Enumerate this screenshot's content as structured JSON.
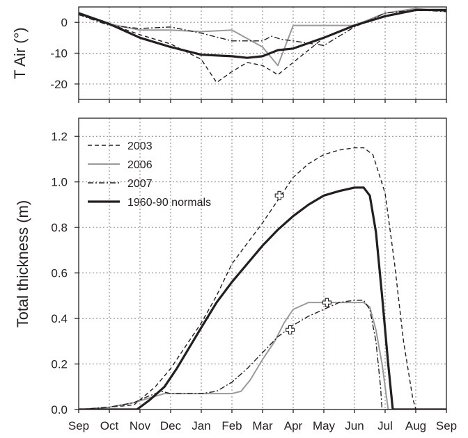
{
  "chart_data": [
    {
      "id": "air_temperature",
      "type": "line",
      "title": "",
      "xlabel": "",
      "ylabel": "T Air (°)",
      "x_categories": [
        "Sep",
        "Oct",
        "Nov",
        "Dec",
        "Jan",
        "Feb",
        "Mar",
        "Apr",
        "May",
        "Jun",
        "Jul",
        "Aug",
        "Sep"
      ],
      "xlim": [
        0,
        12
      ],
      "ylim": [
        -25,
        5
      ],
      "yticks": [
        0,
        -10,
        -20
      ],
      "ytick_labels": [
        "0",
        "-10",
        "-20"
      ],
      "grid": true,
      "series": [
        {
          "name": "2003",
          "style": "dashed",
          "color": "#231f20",
          "points": [
            [
              0,
              2.5
            ],
            [
              1,
              -0.5
            ],
            [
              2,
              -4
            ],
            [
              3,
              -7
            ],
            [
              4,
              -12
            ],
            [
              4.5,
              -19.5
            ],
            [
              5,
              -16
            ],
            [
              5.5,
              -13
            ],
            [
              6,
              -14
            ],
            [
              6.5,
              -17
            ],
            [
              7,
              -13
            ],
            [
              7.5,
              -9
            ],
            [
              8,
              -5
            ],
            [
              9,
              -1
            ],
            [
              10,
              3
            ],
            [
              11,
              4.5
            ],
            [
              12,
              3.5
            ]
          ]
        },
        {
          "name": "2006",
          "style": "solid-gray",
          "color": "#9a9a9a",
          "points": [
            [
              0,
              3
            ],
            [
              1,
              -0.5
            ],
            [
              2,
              -2.5
            ],
            [
              3,
              -2.5
            ],
            [
              4,
              -3
            ],
            [
              5,
              -2.5
            ],
            [
              6,
              -8
            ],
            [
              6.5,
              -14
            ],
            [
              7,
              -1
            ],
            [
              8,
              -1
            ],
            [
              9,
              -1
            ],
            [
              10,
              3
            ],
            [
              11,
              4.5
            ],
            [
              12,
              3.5
            ]
          ]
        },
        {
          "name": "2007",
          "style": "dash-dot",
          "color": "#231f20",
          "points": [
            [
              0,
              2.5
            ],
            [
              1,
              -1
            ],
            [
              2,
              -2
            ],
            [
              3,
              -1.5
            ],
            [
              4,
              -3.5
            ],
            [
              5,
              -6
            ],
            [
              6,
              -6
            ],
            [
              6.3,
              -4.5
            ],
            [
              6.6,
              -5.5
            ],
            [
              7,
              -6
            ],
            [
              8,
              -7.5
            ],
            [
              9,
              -1.5
            ],
            [
              10,
              3
            ],
            [
              11,
              4
            ],
            [
              12,
              3.5
            ]
          ]
        },
        {
          "name": "1960-90 normals",
          "style": "solid-thick",
          "color": "#231f20",
          "points": [
            [
              0,
              3
            ],
            [
              1,
              -0.5
            ],
            [
              2,
              -5
            ],
            [
              3,
              -8
            ],
            [
              4,
              -10.5
            ],
            [
              5,
              -11
            ],
            [
              5.5,
              -11.5
            ],
            [
              6,
              -11
            ],
            [
              6.5,
              -9
            ],
            [
              7,
              -8.5
            ],
            [
              8,
              -5
            ],
            [
              9,
              -1
            ],
            [
              10,
              2
            ],
            [
              11,
              4
            ],
            [
              12,
              4
            ]
          ]
        }
      ]
    },
    {
      "id": "ice_thickness",
      "type": "line",
      "title": "",
      "xlabel": "",
      "ylabel": "Total thickness (m)",
      "x_categories": [
        "Sep",
        "Oct",
        "Nov",
        "Dec",
        "Jan",
        "Feb",
        "Mar",
        "Apr",
        "May",
        "Jun",
        "Jul",
        "Aug",
        "Sep"
      ],
      "xlim": [
        0,
        12
      ],
      "ylim": [
        0,
        1.28
      ],
      "yticks": [
        0,
        0.2,
        0.4,
        0.6,
        0.8,
        1.0,
        1.2
      ],
      "ytick_labels": [
        "0.0",
        "0.2",
        "0.4",
        "0.6",
        "0.8",
        "1.0",
        "1.2"
      ],
      "grid": true,
      "legend": {
        "placement": "top-left",
        "entries": [
          "2003",
          "2006",
          "2007",
          "1960-90 normals"
        ]
      },
      "series": [
        {
          "name": "2003",
          "style": "dashed",
          "color": "#231f20",
          "points": [
            [
              0,
              0
            ],
            [
              1,
              0.01
            ],
            [
              1.8,
              0.02
            ],
            [
              2.5,
              0.1
            ],
            [
              3,
              0.18
            ],
            [
              3.5,
              0.28
            ],
            [
              4,
              0.38
            ],
            [
              4.5,
              0.5
            ],
            [
              5,
              0.64
            ],
            [
              5.5,
              0.73
            ],
            [
              6,
              0.82
            ],
            [
              6.5,
              0.92
            ],
            [
              7,
              1.02
            ],
            [
              7.5,
              1.08
            ],
            [
              8,
              1.12
            ],
            [
              8.5,
              1.14
            ],
            [
              9,
              1.15
            ],
            [
              9.3,
              1.15
            ],
            [
              9.6,
              1.12
            ],
            [
              10,
              0.95
            ],
            [
              10.3,
              0.65
            ],
            [
              10.6,
              0.3
            ],
            [
              10.9,
              0.05
            ],
            [
              11,
              0
            ],
            [
              12,
              0
            ]
          ]
        },
        {
          "name": "2006",
          "style": "solid-gray",
          "color": "#9a9a9a",
          "points": [
            [
              0,
              0
            ],
            [
              1,
              0.01
            ],
            [
              1.8,
              0.03
            ],
            [
              2.3,
              0.05
            ],
            [
              2.8,
              0.07
            ],
            [
              3,
              0.07
            ],
            [
              3.5,
              0.07
            ],
            [
              4,
              0.07
            ],
            [
              4.5,
              0.07
            ],
            [
              5,
              0.07
            ],
            [
              5.3,
              0.08
            ],
            [
              5.6,
              0.13
            ],
            [
              6,
              0.22
            ],
            [
              6.4,
              0.3
            ],
            [
              6.7,
              0.38
            ],
            [
              7,
              0.44
            ],
            [
              7.5,
              0.47
            ],
            [
              8,
              0.47
            ],
            [
              8.5,
              0.47
            ],
            [
              9,
              0.47
            ],
            [
              9.3,
              0.47
            ],
            [
              9.5,
              0.45
            ],
            [
              9.7,
              0.35
            ],
            [
              9.9,
              0.2
            ],
            [
              10.05,
              0.05
            ],
            [
              10.1,
              0
            ],
            [
              12,
              0
            ]
          ]
        },
        {
          "name": "2007",
          "style": "dash-dot",
          "color": "#231f20",
          "points": [
            [
              0,
              0
            ],
            [
              1,
              0.01
            ],
            [
              1.8,
              0.03
            ],
            [
              2.3,
              0.06
            ],
            [
              2.7,
              0.08
            ],
            [
              3,
              0.07
            ],
            [
              3.5,
              0.07
            ],
            [
              4,
              0.07
            ],
            [
              4.5,
              0.08
            ],
            [
              5,
              0.12
            ],
            [
              5.5,
              0.18
            ],
            [
              6,
              0.25
            ],
            [
              6.5,
              0.32
            ],
            [
              7,
              0.37
            ],
            [
              7.5,
              0.41
            ],
            [
              8,
              0.44
            ],
            [
              8.5,
              0.47
            ],
            [
              9,
              0.48
            ],
            [
              9.3,
              0.48
            ],
            [
              9.5,
              0.44
            ],
            [
              9.7,
              0.3
            ],
            [
              9.85,
              0.1
            ],
            [
              9.9,
              0
            ],
            [
              12,
              0
            ]
          ]
        },
        {
          "name": "1960-90 normals",
          "style": "solid-thick",
          "color": "#231f20",
          "points": [
            [
              0,
              0
            ],
            [
              1,
              0
            ],
            [
              1.9,
              0
            ],
            [
              2.3,
              0.04
            ],
            [
              2.8,
              0.1
            ],
            [
              3.2,
              0.18
            ],
            [
              3.6,
              0.27
            ],
            [
              4,
              0.36
            ],
            [
              4.5,
              0.47
            ],
            [
              5,
              0.56
            ],
            [
              5.5,
              0.64
            ],
            [
              6,
              0.72
            ],
            [
              6.5,
              0.79
            ],
            [
              7,
              0.85
            ],
            [
              7.5,
              0.9
            ],
            [
              8,
              0.94
            ],
            [
              8.5,
              0.96
            ],
            [
              9,
              0.975
            ],
            [
              9.3,
              0.975
            ],
            [
              9.5,
              0.94
            ],
            [
              9.7,
              0.78
            ],
            [
              9.9,
              0.5
            ],
            [
              10.1,
              0.2
            ],
            [
              10.25,
              0
            ],
            [
              12,
              0
            ]
          ]
        }
      ],
      "markers": [
        {
          "series": "2003",
          "x": 6.55,
          "y": 0.94
        },
        {
          "series": "2006",
          "x": 8.1,
          "y": 0.47
        },
        {
          "series": "2007",
          "x": 6.9,
          "y": 0.35
        }
      ]
    }
  ]
}
